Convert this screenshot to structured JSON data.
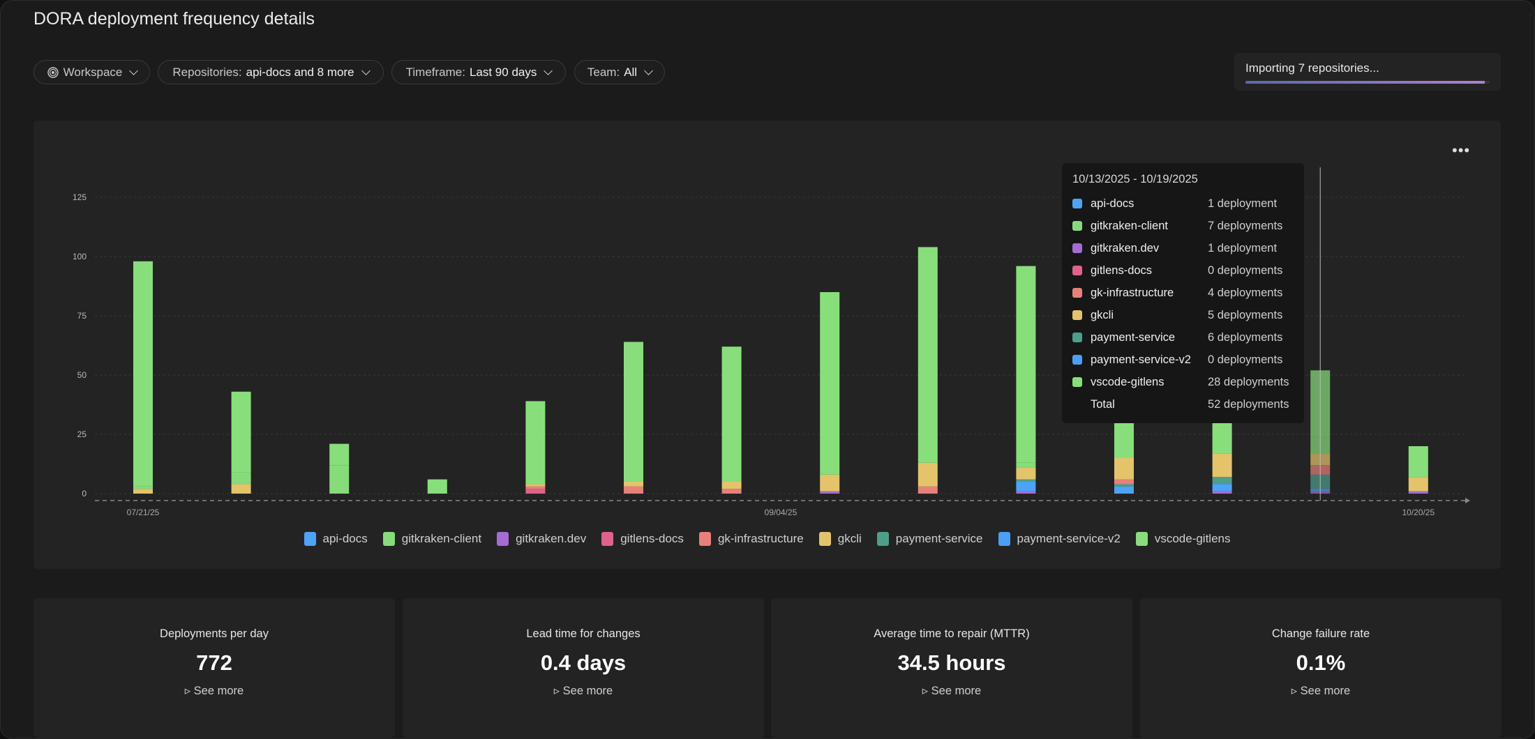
{
  "title": "DORA deployment frequency details",
  "filters": {
    "workspace": "Workspace",
    "repositories_label": "Repositories:",
    "repositories_value": "api-docs and 8 more",
    "timeframe_label": "Timeframe:",
    "timeframe_value": "Last 90 days",
    "team_label": "Team:",
    "team_value": "All"
  },
  "import": {
    "text": "Importing 7 repositories...",
    "progress": 0.98
  },
  "chart_data": {
    "type": "bar",
    "stacked": true,
    "ylim": [
      0,
      125
    ],
    "yticks": [
      0,
      25,
      50,
      75,
      100,
      125
    ],
    "x_tick_labels": [
      {
        "week": 0,
        "label": "07/21/25"
      },
      {
        "week": 6.5,
        "label": "09/04/25"
      },
      {
        "week": 13,
        "label": "10/20/25"
      }
    ],
    "grid": true,
    "legend": "bottom",
    "series": [
      {
        "name": "gitkraken.dev",
        "color": "#a66bd4",
        "values": [
          0,
          0,
          0,
          0,
          0,
          0,
          0,
          1,
          0,
          1,
          0,
          1,
          1,
          1
        ]
      },
      {
        "name": "gitlens-docs",
        "color": "#e0628a",
        "values": [
          0,
          0,
          0,
          0,
          2,
          0,
          0,
          0,
          0,
          0,
          0,
          0,
          0,
          0
        ]
      },
      {
        "name": "api-docs",
        "color": "#4da3f7",
        "values": [
          0,
          0,
          0,
          0,
          0,
          0,
          0,
          0,
          0,
          4,
          3,
          3,
          1,
          0
        ]
      },
      {
        "name": "payment-service-v2",
        "color": "#4aa0f5",
        "values": [
          0,
          0,
          0,
          0,
          0,
          0,
          0,
          0,
          0,
          0,
          0,
          0,
          0,
          0
        ]
      },
      {
        "name": "payment-service",
        "color": "#4e9e8a",
        "values": [
          0,
          0,
          0,
          0,
          0,
          0,
          0,
          0,
          0,
          1,
          1,
          3,
          6,
          0
        ]
      },
      {
        "name": "gk-infrastructure",
        "color": "#e8807a",
        "values": [
          0,
          0,
          0,
          0,
          1,
          3,
          2,
          0,
          3,
          0,
          2,
          0,
          4,
          0
        ]
      },
      {
        "name": "gkcli",
        "color": "#e3c46b",
        "values": [
          2,
          4,
          0,
          0,
          1,
          2,
          3,
          7,
          10,
          5,
          9,
          10,
          5,
          6
        ]
      },
      {
        "name": "gitkraken-client",
        "color": "#86dc7a",
        "values": [
          1,
          5,
          12,
          0,
          0,
          0,
          0,
          0,
          0,
          2,
          0,
          0,
          7,
          0
        ]
      },
      {
        "name": "vscode-gitlens",
        "color": "#88de7b",
        "values": [
          95,
          34,
          9,
          6,
          35,
          59,
          57,
          77,
          91,
          83,
          43,
          47,
          28,
          13
        ]
      }
    ],
    "highlighted_week": 12
  },
  "tooltip": {
    "range": "10/13/2025 - 10/19/2025",
    "rows": [
      {
        "name": "api-docs",
        "value": "1 deployment",
        "color": "#4da3f7"
      },
      {
        "name": "gitkraken-client",
        "value": "7 deployments",
        "color": "#86dc7a"
      },
      {
        "name": "gitkraken.dev",
        "value": "1 deployment",
        "color": "#a66bd4"
      },
      {
        "name": "gitlens-docs",
        "value": "0 deployments",
        "color": "#e0628a"
      },
      {
        "name": "gk-infrastructure",
        "value": "4 deployments",
        "color": "#e8807a"
      },
      {
        "name": "gkcli",
        "value": "5 deployments",
        "color": "#e3c46b"
      },
      {
        "name": "payment-service",
        "value": "6 deployments",
        "color": "#4e9e8a"
      },
      {
        "name": "payment-service-v2",
        "value": "0 deployments",
        "color": "#4aa0f5"
      },
      {
        "name": "vscode-gitlens",
        "value": "28 deployments",
        "color": "#88de7b"
      }
    ],
    "total_label": "Total",
    "total_value": "52 deployments"
  },
  "legend": [
    {
      "name": "api-docs",
      "color": "#4da3f7"
    },
    {
      "name": "gitkraken-client",
      "color": "#86dc7a"
    },
    {
      "name": "gitkraken.dev",
      "color": "#a66bd4"
    },
    {
      "name": "gitlens-docs",
      "color": "#e0628a"
    },
    {
      "name": "gk-infrastructure",
      "color": "#e8807a"
    },
    {
      "name": "gkcli",
      "color": "#e3c46b"
    },
    {
      "name": "payment-service",
      "color": "#4e9e8a"
    },
    {
      "name": "payment-service-v2",
      "color": "#4aa0f5"
    },
    {
      "name": "vscode-gitlens",
      "color": "#88de7b"
    }
  ],
  "stats": [
    {
      "label": "Deployments per day",
      "value": "772",
      "link": "See more"
    },
    {
      "label": "Lead time for changes",
      "value": "0.4 days",
      "link": "See more"
    },
    {
      "label": "Average time to repair (MTTR)",
      "value": "34.5 hours",
      "link": "See more"
    },
    {
      "label": "Change failure rate",
      "value": "0.1%",
      "link": "See more"
    }
  ]
}
